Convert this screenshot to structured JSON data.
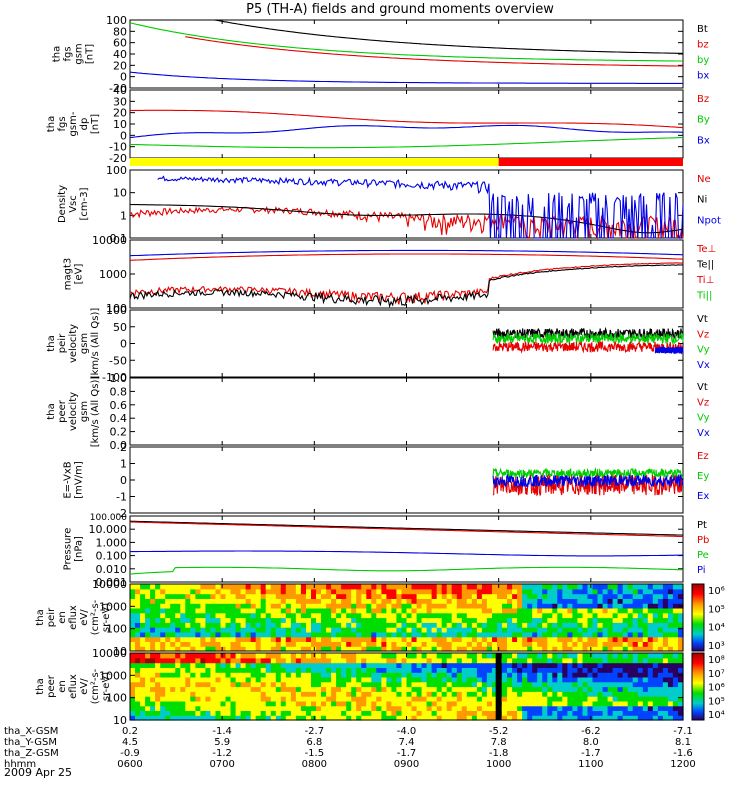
{
  "title": "P5 (TH-A) fields and ground moments overview",
  "date_label": "2009 Apr 25",
  "colors": {
    "black": "#000000",
    "red": "#e60000",
    "green": "#00cc00",
    "blue": "#0000e6",
    "yellow": "#ffff00",
    "bar_red": "#ff0000"
  },
  "chart_data": [
    {
      "type": "line",
      "id": "p1",
      "ylabel": [
        "tha",
        "fgs",
        "gsm",
        "[nT]"
      ],
      "yticks": [
        "100",
        "80",
        "60",
        "40",
        "20",
        "0",
        "-20"
      ],
      "ylim": [
        -20,
        100
      ],
      "series": [
        {
          "name": "Bt",
          "color": "black"
        },
        {
          "name": "bz",
          "color": "red"
        },
        {
          "name": "by",
          "color": "green"
        },
        {
          "name": "bx",
          "color": "blue"
        }
      ]
    },
    {
      "type": "line",
      "id": "p2",
      "ylabel": [
        "tha",
        "fgs",
        "gsm-",
        "dp",
        "[nT]"
      ],
      "yticks": [
        "40",
        "30",
        "20",
        "10",
        "0",
        "-10",
        "-20"
      ],
      "ylim": [
        -20,
        40
      ],
      "series": [
        {
          "name": "Bz",
          "color": "red"
        },
        {
          "name": "By",
          "color": "green"
        },
        {
          "name": "Bx",
          "color": "blue"
        }
      ]
    },
    {
      "type": "bar",
      "id": "mode",
      "segments": [
        {
          "start": "0600",
          "end": "1000",
          "color": "yellow"
        },
        {
          "start": "1000",
          "end": "1200",
          "color": "bar_red"
        }
      ]
    },
    {
      "type": "line",
      "id": "p3",
      "ylabel": [
        "Density",
        "Vsc",
        "[cm-3]"
      ],
      "yticks": [
        "100",
        "10",
        "1",
        "0.1"
      ],
      "ylim": [
        0.1,
        100
      ],
      "scale": "log",
      "series": [
        {
          "name": "Ne",
          "color": "red"
        },
        {
          "name": "Ni",
          "color": "black"
        },
        {
          "name": "Npot",
          "color": "blue"
        }
      ]
    },
    {
      "type": "line",
      "id": "p4",
      "ylabel": [
        "magt3",
        "[eV]"
      ],
      "yticks": [
        "10000",
        "1000",
        "100"
      ],
      "ylim": [
        30,
        12000
      ],
      "scale": "log",
      "series": [
        {
          "name": "Te⊥",
          "color": "red"
        },
        {
          "name": "Te||",
          "color": "black"
        },
        {
          "name": "Ti⊥",
          "color": "red"
        },
        {
          "name": "Ti||",
          "color": "green"
        }
      ]
    },
    {
      "type": "line",
      "id": "p5",
      "ylabel": [
        "tha",
        "peir",
        "velocity",
        "gsm",
        "[km/s (All Qs)]"
      ],
      "yticks": [
        "100",
        "50",
        "0",
        "-50",
        "-100"
      ],
      "ylim": [
        -100,
        100
      ],
      "series": [
        {
          "name": "Vt",
          "color": "black"
        },
        {
          "name": "Vz",
          "color": "red"
        },
        {
          "name": "Vy",
          "color": "green"
        },
        {
          "name": "Vx",
          "color": "blue"
        }
      ]
    },
    {
      "type": "line",
      "id": "p6",
      "ylabel": [
        "tha",
        "peer",
        "velocity",
        "gsm",
        "[km/s (All Qs)]"
      ],
      "yticks": [
        "1.0",
        "0.8",
        "0.6",
        "0.4",
        "0.2",
        "0.0"
      ],
      "ylim": [
        0,
        1
      ],
      "series": [
        {
          "name": "Vt",
          "color": "black"
        },
        {
          "name": "Vz",
          "color": "red"
        },
        {
          "name": "Vy",
          "color": "green"
        },
        {
          "name": "Vx",
          "color": "blue"
        }
      ]
    },
    {
      "type": "line",
      "id": "p7",
      "ylabel": [
        "E=-VxB",
        "[mV/m]"
      ],
      "yticks": [
        "2",
        "1",
        "0",
        "-1",
        "-2"
      ],
      "ylim": [
        -2.5,
        2
      ],
      "series": [
        {
          "name": "Ez",
          "color": "red"
        },
        {
          "name": "Ey",
          "color": "green"
        },
        {
          "name": "Ex",
          "color": "blue"
        }
      ]
    },
    {
      "type": "line",
      "id": "p8",
      "ylabel": [
        "Pressure",
        "[nPa]"
      ],
      "yticks": [
        "100.000",
        "10.000",
        "1.000",
        "0.100",
        "0.010",
        "0.001"
      ],
      "ylim": [
        0.001,
        100
      ],
      "scale": "log",
      "series": [
        {
          "name": "Pt",
          "color": "black"
        },
        {
          "name": "Pb",
          "color": "red"
        },
        {
          "name": "Pe",
          "color": "green"
        },
        {
          "name": "Pi",
          "color": "blue"
        }
      ]
    },
    {
      "type": "heatmap",
      "id": "p9",
      "ylabel": [
        "tha",
        "peir",
        "en",
        "eflux",
        "eV/",
        "(cm²-s-",
        "sr-eV)"
      ],
      "yticks": [
        "10000",
        "1000",
        "100",
        "10"
      ],
      "colorbar": [
        "10⁶",
        "10⁵",
        "10⁴",
        "10³"
      ]
    },
    {
      "type": "heatmap",
      "id": "p10",
      "ylabel": [
        "tha",
        "peer",
        "en",
        "eflux",
        "eV/",
        "(cm²-s-",
        "sr-eV)"
      ],
      "yticks": [
        "10000",
        "1000",
        "100",
        "10"
      ],
      "colorbar": [
        "10⁸",
        "10⁷",
        "10⁶",
        "10⁵",
        "10⁴"
      ]
    }
  ],
  "x_axis": {
    "row_labels": [
      "tha_X-GSM",
      "tha_Y-GSM",
      "tha_Z-GSM",
      "hhmm"
    ],
    "ticks": [
      {
        "x": "0.2",
        "y": "4.5",
        "z": "-0.9",
        "t": "0600"
      },
      {
        "x": "-1.4",
        "y": "5.9",
        "z": "-1.2",
        "t": "0700"
      },
      {
        "x": "-2.7",
        "y": "6.8",
        "z": "-1.5",
        "t": "0800"
      },
      {
        "x": "-4.0",
        "y": "7.4",
        "z": "-1.7",
        "t": "0900"
      },
      {
        "x": "-5.2",
        "y": "7.8",
        "z": "-1.8",
        "t": "1000"
      },
      {
        "x": "-6.2",
        "y": "8.0",
        "z": "-1.7",
        "t": "1100"
      },
      {
        "x": "-7.1",
        "y": "8.1",
        "z": "-1.6",
        "t": "1200"
      }
    ]
  }
}
